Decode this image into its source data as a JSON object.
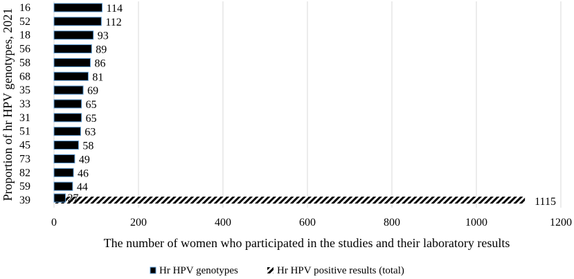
{
  "chart_data": {
    "type": "bar",
    "orientation": "horizontal",
    "categories": [
      "16",
      "52",
      "18",
      "56",
      "58",
      "68",
      "35",
      "33",
      "31",
      "51",
      "45",
      "73",
      "82",
      "59",
      "39"
    ],
    "series": [
      {
        "name": "Hr HPV genotypes",
        "values": [
          114,
          112,
          93,
          89,
          86,
          81,
          69,
          65,
          65,
          63,
          58,
          49,
          46,
          44,
          27
        ],
        "color": "#000000",
        "edge_color": "#5b9bd5"
      },
      {
        "name": "Hr HPV positive results (total)",
        "total_value": 1115,
        "pattern": "diagonal-hatch"
      }
    ],
    "xlabel": "The number of women who participated in the studies and their laboratory results",
    "ylabel": "Proportion of hr HPV genotypes, 2021",
    "xlim": [
      0,
      1200
    ],
    "xticks": [
      0,
      200,
      400,
      600,
      800,
      1000,
      1200
    ],
    "grid": true,
    "legend_position": "bottom"
  }
}
